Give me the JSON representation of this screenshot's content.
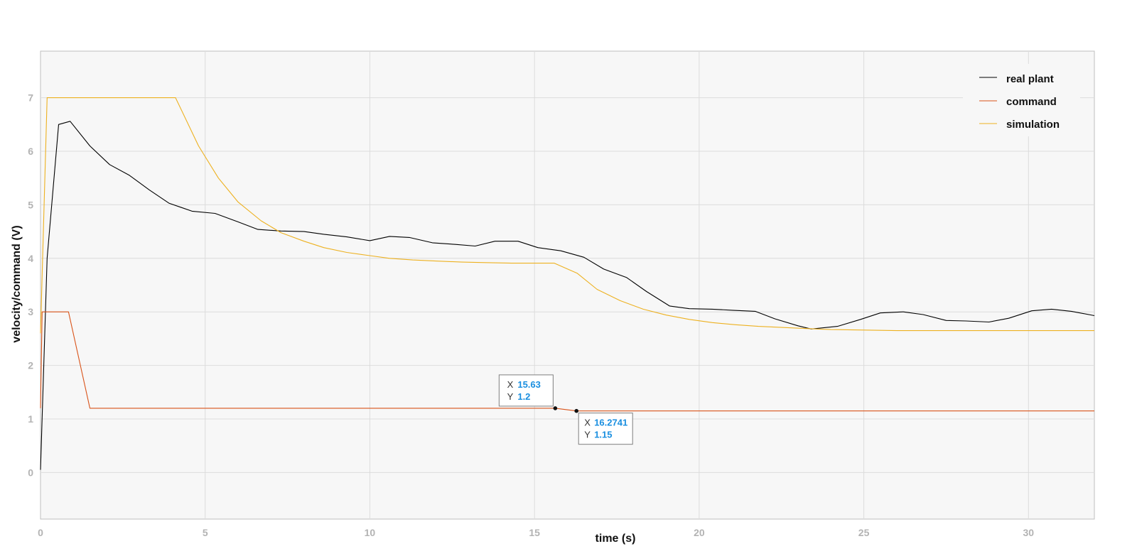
{
  "chart_data": {
    "type": "line",
    "title": "",
    "xlabel": "time (s)",
    "ylabel": "velocity/command (V)",
    "xlim": [
      0,
      32
    ],
    "ylim": [
      -0.87,
      7.87
    ],
    "xticks": [
      0,
      5,
      10,
      15,
      20,
      25,
      30
    ],
    "yticks": [
      0,
      1,
      2,
      3,
      4,
      5,
      6,
      7
    ],
    "grid": true,
    "legend_position": "top-right",
    "series": [
      {
        "name": "real plant",
        "color": "#000000",
        "x": [
          0,
          0.2,
          0.55,
          0.9,
          1.5,
          2.1,
          2.7,
          3.3,
          3.9,
          4.6,
          5.3,
          6.0,
          6.6,
          7.3,
          8.0,
          8.6,
          9.3,
          10.0,
          10.6,
          11.2,
          11.9,
          12.6,
          13.2,
          13.8,
          14.5,
          15.1,
          15.8,
          16.5,
          17.1,
          17.8,
          18.4,
          19.1,
          19.7,
          20.4,
          21.0,
          21.7,
          22.3,
          23.0,
          23.4,
          24.2,
          24.9,
          25.5,
          26.2,
          26.8,
          27.5,
          28.1,
          28.8,
          29.4,
          30.1,
          30.7,
          31.3,
          32.0
        ],
        "y": [
          0.05,
          4.0,
          6.5,
          6.56,
          6.1,
          5.75,
          5.55,
          5.28,
          5.03,
          4.88,
          4.84,
          4.68,
          4.54,
          4.51,
          4.5,
          4.45,
          4.4,
          4.33,
          4.41,
          4.39,
          4.29,
          4.26,
          4.23,
          4.32,
          4.32,
          4.2,
          4.14,
          4.02,
          3.8,
          3.64,
          3.38,
          3.11,
          3.06,
          3.05,
          3.03,
          3.01,
          2.87,
          2.74,
          2.68,
          2.73,
          2.86,
          2.98,
          3.0,
          2.95,
          2.84,
          2.83,
          2.81,
          2.88,
          3.02,
          3.05,
          3.01,
          2.93
        ]
      },
      {
        "name": "command",
        "color": "#d95319",
        "x": [
          0,
          0.05,
          0.85,
          1.5,
          15.63,
          16.2741,
          32
        ],
        "y": [
          1.2,
          3.0,
          3.0,
          1.2,
          1.2,
          1.15,
          1.15
        ]
      },
      {
        "name": "simulation",
        "color": "#edb120",
        "x": [
          0,
          0.2,
          4.1,
          4.8,
          5.4,
          6.0,
          6.7,
          7.3,
          8.0,
          8.6,
          9.3,
          10.0,
          10.6,
          11.3,
          12.0,
          12.8,
          13.5,
          14.3,
          15.0,
          15.6,
          16.3,
          16.9,
          17.6,
          18.3,
          19.0,
          19.7,
          20.4,
          21.1,
          21.8,
          22.5,
          23.2,
          24.0,
          25.0,
          26.0,
          28.0,
          30.0,
          32.0
        ],
        "y": [
          2.6,
          7.0,
          7.0,
          6.1,
          5.5,
          5.05,
          4.7,
          4.48,
          4.32,
          4.2,
          4.11,
          4.05,
          4.0,
          3.97,
          3.95,
          3.93,
          3.92,
          3.91,
          3.91,
          3.91,
          3.72,
          3.42,
          3.21,
          3.05,
          2.94,
          2.86,
          2.8,
          2.76,
          2.73,
          2.71,
          2.69,
          2.67,
          2.66,
          2.65,
          2.65,
          2.65,
          2.65
        ]
      }
    ],
    "datatips": [
      {
        "x_key": "X",
        "y_key": "Y",
        "x_value": "15.63",
        "y_value": "1.2",
        "x": 15.63,
        "y": 1.2,
        "placement": "above-left"
      },
      {
        "x_key": "X",
        "y_key": "Y",
        "x_value": "16.2741",
        "y_value": "1.15",
        "x": 16.2741,
        "y": 1.15,
        "placement": "below-right"
      }
    ],
    "colors": {
      "plot_background": "#f7f7f7",
      "grid": "#dcdcdc",
      "axes_box": "#bfbfbf",
      "tick_label": "#b3b3b3"
    }
  }
}
